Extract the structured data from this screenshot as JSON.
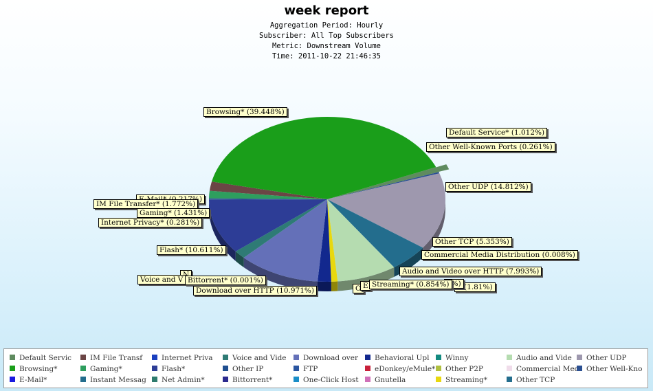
{
  "header": {
    "title": "week report",
    "lines": [
      "Aggregation Period: Hourly",
      "Subscriber: All Top Subscribers",
      "Metric: Downstream Volume",
      "Time: 2011-10-22 21:46:35"
    ]
  },
  "chart_data": {
    "type": "pie",
    "title": "week report",
    "slices": [
      {
        "name": "Default Service*",
        "label": "Default Service* (1.012%)",
        "value": 1.012,
        "color": "#5f8b5f"
      },
      {
        "name": "Other Well-Known Ports",
        "label": "Other Well-Known Ports (0.261%)",
        "value": 0.261,
        "color": "#2b4f91"
      },
      {
        "name": "Other UDP",
        "label": "Other UDP (14.812%)",
        "value": 14.812,
        "color": "#9e98ae"
      },
      {
        "name": "Other TCP",
        "label": "Other TCP (5.353%)",
        "value": 5.353,
        "color": "#236d8d"
      },
      {
        "name": "Commercial Media Distribution",
        "label": "Commercial Media Distribution (0.008%)",
        "value": 0.008,
        "color": "#f0dcea"
      },
      {
        "name": "Audio and Video over HTTP",
        "label": "Audio and Video over HTTP (7.993%)",
        "value": 7.993,
        "color": "#b5dcb0"
      },
      {
        "name": "Streaming*",
        "label": "Streaming* (0.854%)",
        "value": 0.854,
        "color": "#e8d80e"
      },
      {
        "name": "Behavioral Upload",
        "label": "d (1.81%)",
        "value": 1.81,
        "color": "#12288e"
      },
      {
        "name": "Download over HTTP",
        "label": "Download over HTTP (10.971%)",
        "value": 10.971,
        "color": "#6470b8"
      },
      {
        "name": "Bittorrent*",
        "label": "Bittorrent* (0.001%)",
        "value": 0.001,
        "color": "#2b2a8f"
      },
      {
        "name": "Voice and Video",
        "label": "Voice and V",
        "value": 1.6,
        "color": "#2e7b75"
      },
      {
        "name": "Flash*",
        "label": "Flash* (10.611%)",
        "value": 10.611,
        "color": "#2d3d96"
      },
      {
        "name": "Internet Privacy*",
        "label": "Internet Privacy* (0.281%)",
        "value": 0.281,
        "color": "#2b4f91"
      },
      {
        "name": "Gaming*",
        "label": "Gaming* (1.431%)",
        "value": 1.431,
        "color": "#2e9e5e"
      },
      {
        "name": "IM File Transfer*",
        "label": "IM File Transfer* (1.772%)",
        "value": 1.772,
        "color": "#6b4545"
      },
      {
        "name": "Browsing*",
        "label": "Browsing* (39.448%)",
        "value": 39.448,
        "color": "#1a9e1a"
      }
    ],
    "legend_position": "bottom",
    "legend": [
      {
        "label": "Default Servic",
        "color": "#5f8b5f"
      },
      {
        "label": "IM File Transf",
        "color": "#6b4545"
      },
      {
        "label": "Internet Priva",
        "color": "#1a3fbf"
      },
      {
        "label": "Voice and Vide",
        "color": "#2e7b75"
      },
      {
        "label": "Download over",
        "color": "#6470b8"
      },
      {
        "label": "Behavioral Upl",
        "color": "#12288e"
      },
      {
        "label": "Winny",
        "color": "#138a80"
      },
      {
        "label": "Audio and Vide",
        "color": "#b5dcb0"
      },
      {
        "label": "Other UDP",
        "color": "#9e98ae"
      },
      {
        "label": "Browsing*",
        "color": "#1a9e1a"
      },
      {
        "label": "Gaming*",
        "color": "#2e9e5e"
      },
      {
        "label": "Flash*",
        "color": "#2d3d96"
      },
      {
        "label": "Other IP",
        "color": "#1f4f8f"
      },
      {
        "label": "FTP",
        "color": "#2a55a0"
      },
      {
        "label": "eDonkey/eMule*",
        "color": "#c8203a"
      },
      {
        "label": "Other P2P",
        "color": "#b0c040"
      },
      {
        "label": "Commercial Med",
        "color": "#f0dcea"
      },
      {
        "label": "Other Well-Kno",
        "color": "#2b4f91"
      },
      {
        "label": "E-Mail*",
        "color": "#1a1ae0"
      },
      {
        "label": "Instant Messag",
        "color": "#236d8d"
      },
      {
        "label": "Net Admin*",
        "color": "#2e7b6e"
      },
      {
        "label": "Bittorrent*",
        "color": "#2b2a8f"
      },
      {
        "label": "One-Click Host",
        "color": "#1a8ec8"
      },
      {
        "label": "Gnutella",
        "color": "#d070b8"
      },
      {
        "label": "Streaming*",
        "color": "#e8d80e"
      },
      {
        "label": "Other TCP",
        "color": "#236d8d"
      }
    ]
  },
  "labels": {
    "default_service": "Default Service* (1.012%)",
    "other_wk_ports": "Other Well-Known Ports (0.261%)",
    "browsing": "Browsing* (39.448%)",
    "other_udp": "Other UDP (14.812%)",
    "other_tcp": "Other TCP (5.353%)",
    "commercial_media": "Commercial Media Distribution (0.008%)",
    "audio_video_http": "Audio and Video over HTTP (7.993%)",
    "streaming": "Streaming* (0.854%)",
    "streaming_hidden": "2%)",
    "behavioral_partial": "d (1.81%)",
    "download_http": "Download over HTTP (10.971%)",
    "bittorrent": "Bittorrent* (0.001%)",
    "voice_video": "Voice and V",
    "flash": "Flash* (10.611%)",
    "internet_privacy": "Internet Privacy* (0.281%)",
    "gaming": "Gaming* (1.431%)",
    "im_file_transfer": "IM File Transfer* (1.772%)",
    "email": "E-Mail* (0.217%)",
    "net_admin_hidden": "N",
    "other_hidden": "O",
    "edonkey_hidden": "E"
  }
}
